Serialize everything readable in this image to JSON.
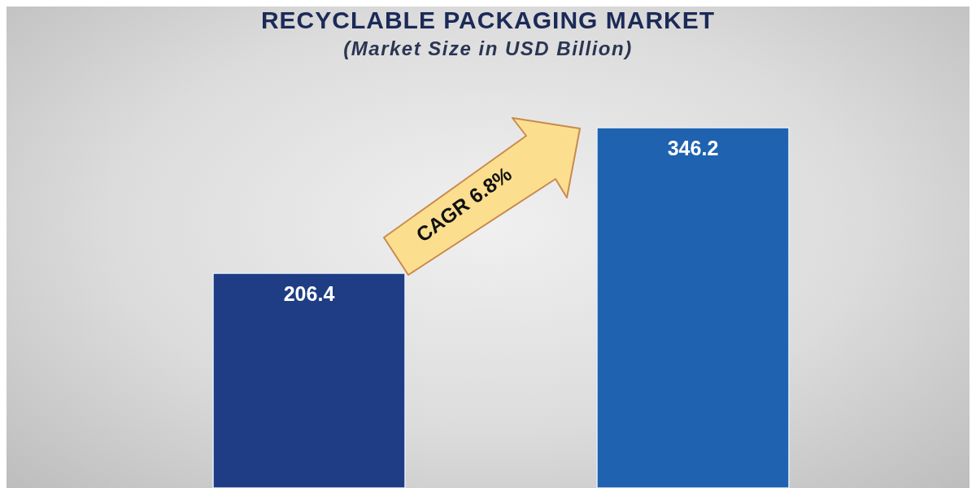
{
  "chart_data": {
    "type": "bar",
    "title": "RECYCLABLE PACKAGING MARKET",
    "subtitle": "(Market Size in USD Billion)",
    "categories": [
      null,
      null
    ],
    "values": [
      206.4,
      346.2
    ],
    "colors": [
      "#1e3d84",
      "#1f62b0"
    ],
    "data_labels": true,
    "tick_labels": false,
    "annotations": [
      "CAGR 6.8%"
    ]
  }
}
